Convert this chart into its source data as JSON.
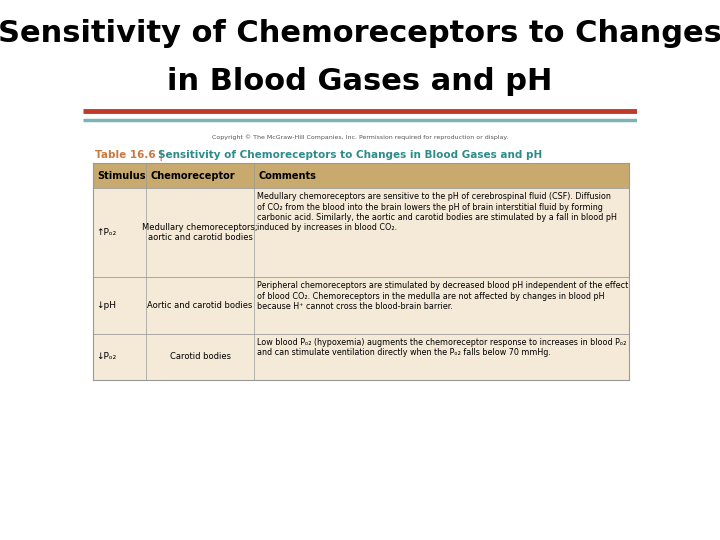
{
  "title_line1": "Sensitivity of Chemoreceptors to Changes",
  "title_line2": "in Blood Gases and pH",
  "title_fontsize": 22,
  "bg_color": "#ffffff",
  "separator_color_red": "#c0392b",
  "separator_color_teal": "#7fb3b3",
  "copyright_text": "Copyright © The McGraw-Hill Companies, Inc. Permission required for reproduction or display.",
  "table_label": "Table 16.6",
  "table_title": "Sensitivity of Chemoreceptors to Changes in Blood Gases and pH",
  "table_label_color": "#c87941",
  "table_title_color": "#2e8b8b",
  "header_bg": "#c8a96e",
  "row_bg": "#f5ead8",
  "border_color": "#999999",
  "col_headers": [
    "Stimulus",
    "Chemoreceptor",
    "Comments"
  ],
  "rows": [
    {
      "stimulus": "↑Pₒ₂",
      "chemoreceptor": "Medullary chemoreceptors;\naortic and carotid bodies",
      "comments": "Medullary chemoreceptors are sensitive to the pH of cerebrospinal fluid (CSF). Diffusion\nof CO₂ from the blood into the brain lowers the pH of brain interstitial fluid by forming\ncarbonic acid. Similarly, the aortic and carotid bodies are stimulated by a fall in blood pH\ninduced by increases in blood CO₂."
    },
    {
      "stimulus": "↓pH",
      "chemoreceptor": "Aortic and carotid bodies",
      "comments": "Peripheral chemoreceptors are stimulated by decreased blood pH independent of the effect\nof blood CO₂. Chemoreceptors in the medulla are not affected by changes in blood pH\nbecause H⁺ cannot cross the blood-brain barrier."
    },
    {
      "stimulus": "↓Pₒ₂",
      "chemoreceptor": "Carotid bodies",
      "comments": "Low blood Pₒ₂ (hypoxemia) augments the chemoreceptor response to increases in blood Pₒ₂\nand can stimulate ventilation directly when the Pₒ₂ falls below 70 mmHg."
    }
  ]
}
